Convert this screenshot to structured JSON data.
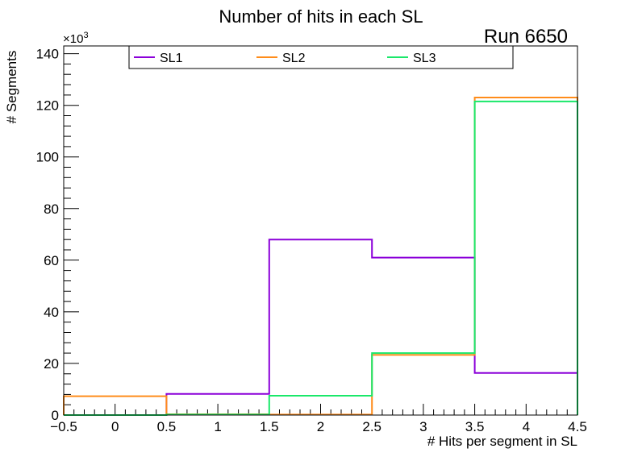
{
  "chart_data": {
    "type": "step-histogram",
    "title": "Number of hits in each SL",
    "run_label": "Run 6650",
    "xlabel": "# Hits per segment in SL",
    "ylabel": "# Segments",
    "y_multiplier_label": "×10",
    "y_multiplier_exp": "3",
    "xlim": [
      -0.5,
      4.5
    ],
    "ylim": [
      0,
      143
    ],
    "x_ticks": [
      -0.5,
      0,
      0.5,
      1,
      1.5,
      2,
      2.5,
      3,
      3.5,
      4,
      4.5
    ],
    "x_tick_labels": [
      "−0.5",
      "0",
      "0.5",
      "1",
      "1.5",
      "2",
      "2.5",
      "3",
      "3.5",
      "4",
      "4.5"
    ],
    "y_ticks": [
      0,
      20,
      40,
      60,
      80,
      100,
      120,
      140
    ],
    "y_tick_labels": [
      "0",
      "20",
      "40",
      "60",
      "80",
      "100",
      "120",
      "140"
    ],
    "bin_edges": [
      -0.5,
      0.5,
      1.5,
      2.5,
      3.5,
      4.5
    ],
    "series": [
      {
        "name": "SL1",
        "color": "#8b00d9",
        "values": [
          0,
          8.2,
          68,
          61,
          16.3
        ]
      },
      {
        "name": "SL2",
        "color": "#ff8c1a",
        "values": [
          7.3,
          0.3,
          0.2,
          23.3,
          123
        ]
      },
      {
        "name": "SL3",
        "color": "#1ae86a",
        "values": [
          0,
          0.2,
          7.5,
          24,
          121.5
        ]
      }
    ],
    "legend_position": "top"
  }
}
